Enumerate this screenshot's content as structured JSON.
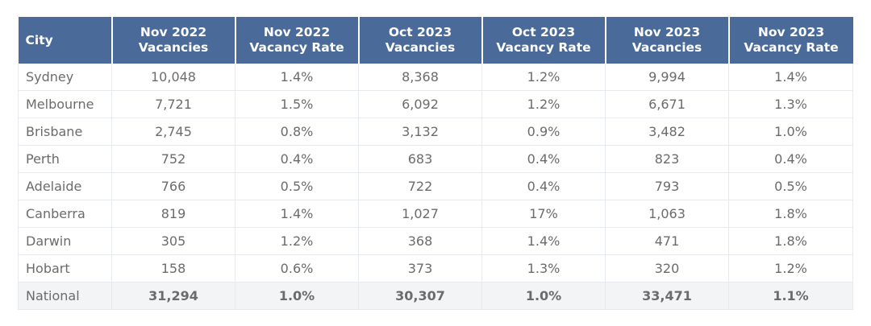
{
  "table": {
    "headers": [
      [
        "City"
      ],
      [
        "Nov 2022",
        "Vacancies"
      ],
      [
        "Nov 2022",
        "Vacancy Rate"
      ],
      [
        "Oct 2023",
        "Vacancies"
      ],
      [
        "Oct 2023",
        "Vacancy Rate"
      ],
      [
        "Nov 2023",
        "Vacancies"
      ],
      [
        "Nov 2023",
        "Vacancy Rate"
      ]
    ],
    "rows": [
      [
        "Sydney",
        "10,048",
        "1.4%",
        "8,368",
        "1.2%",
        "9,994",
        "1.4%"
      ],
      [
        "Melbourne",
        "7,721",
        "1.5%",
        "6,092",
        "1.2%",
        "6,671",
        "1.3%"
      ],
      [
        "Brisbane",
        "2,745",
        "0.8%",
        "3,132",
        "0.9%",
        "3,482",
        "1.0%"
      ],
      [
        "Perth",
        "752",
        "0.4%",
        "683",
        "0.4%",
        "823",
        "0.4%"
      ],
      [
        "Adelaide",
        "766",
        "0.5%",
        "722",
        "0.4%",
        "793",
        "0.5%"
      ],
      [
        "Canberra",
        "819",
        "1.4%",
        "1,027",
        "17%",
        "1,063",
        "1.8%"
      ],
      [
        "Darwin",
        "305",
        "1.2%",
        "368",
        "1.4%",
        "471",
        "1.8%"
      ],
      [
        "Hobart",
        "158",
        "0.6%",
        "373",
        "1.3%",
        "320",
        "1.2%"
      ]
    ],
    "total_row": [
      "National",
      "31,294",
      "1.0%",
      "30,307",
      "1.0%",
      "33,471",
      "1.1%"
    ]
  },
  "colors": {
    "header_bg": "#4a6b9a",
    "header_text": "#ffffff",
    "cell_text": "#6b6b6b",
    "total_row_bg": "#f3f4f6",
    "grid_line": "#e6e9ee"
  }
}
